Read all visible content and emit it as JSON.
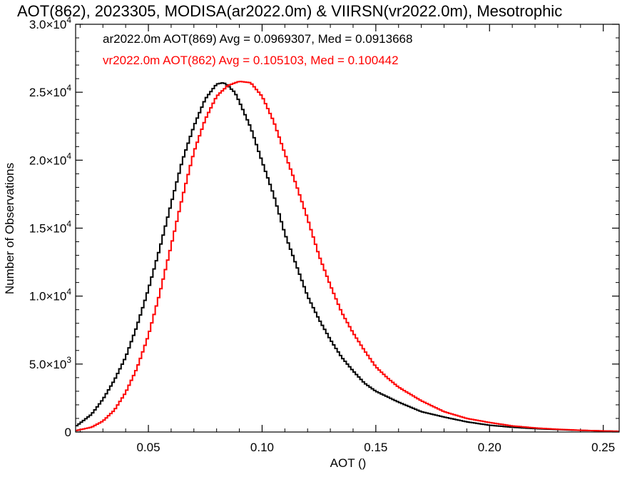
{
  "chart_data": {
    "type": "line",
    "title": "AOT(862), 2023305, MODISA(ar2022.0m) & VIIRSN(vr2022.0m), Mesotrophic",
    "xlabel": "AOT ()",
    "ylabel": "Number of Observations",
    "xlim": [
      0.018,
      0.257
    ],
    "ylim": [
      0,
      30000
    ],
    "x_ticks": [
      {
        "value": 0.05,
        "label": "0.05"
      },
      {
        "value": 0.1,
        "label": "0.10"
      },
      {
        "value": 0.15,
        "label": "0.15"
      },
      {
        "value": 0.2,
        "label": "0.20"
      },
      {
        "value": 0.25,
        "label": "0.25"
      }
    ],
    "y_ticks": [
      {
        "value": 0,
        "mant": "0",
        "exp": ""
      },
      {
        "value": 5000,
        "mant": "5.0×10",
        "exp": "3"
      },
      {
        "value": 10000,
        "mant": "1.0×10",
        "exp": "4"
      },
      {
        "value": 15000,
        "mant": "1.5×10",
        "exp": "4"
      },
      {
        "value": 20000,
        "mant": "2.0×10",
        "exp": "4"
      },
      {
        "value": 25000,
        "mant": "2.5×10",
        "exp": "4"
      },
      {
        "value": 30000,
        "mant": "3.0×10",
        "exp": "4"
      }
    ],
    "grid": false,
    "legend_position": "top-left",
    "series": [
      {
        "name": "ar2022.0m AOT(869) Avg = 0.0969307, Med = 0.0913668",
        "color": "#000000",
        "x": [
          0.018,
          0.025,
          0.03,
          0.035,
          0.04,
          0.045,
          0.05,
          0.055,
          0.06,
          0.065,
          0.07,
          0.075,
          0.08,
          0.083,
          0.085,
          0.086,
          0.088,
          0.09,
          0.095,
          0.1,
          0.105,
          0.11,
          0.115,
          0.12,
          0.125,
          0.13,
          0.135,
          0.14,
          0.145,
          0.15,
          0.16,
          0.17,
          0.18,
          0.19,
          0.2,
          0.21,
          0.22,
          0.23,
          0.24,
          0.25,
          0.257
        ],
        "y": [
          400,
          1300,
          2400,
          3800,
          5500,
          7800,
          10500,
          13500,
          16800,
          20000,
          22500,
          24500,
          25600,
          25700,
          25500,
          25300,
          25000,
          24300,
          22400,
          19900,
          17500,
          14600,
          12300,
          10000,
          8300,
          6800,
          5500,
          4500,
          3600,
          3000,
          2200,
          1500,
          1100,
          750,
          500,
          350,
          250,
          180,
          120,
          80,
          50
        ]
      },
      {
        "name": "vr2022.0m AOT(862) Avg = 0.105103, Med = 0.100442",
        "color": "#ff0000",
        "x": [
          0.018,
          0.025,
          0.03,
          0.035,
          0.04,
          0.045,
          0.05,
          0.055,
          0.06,
          0.065,
          0.07,
          0.075,
          0.08,
          0.085,
          0.09,
          0.095,
          0.1,
          0.105,
          0.11,
          0.115,
          0.12,
          0.125,
          0.13,
          0.135,
          0.14,
          0.145,
          0.15,
          0.155,
          0.16,
          0.17,
          0.18,
          0.19,
          0.2,
          0.21,
          0.22,
          0.23,
          0.24,
          0.25,
          0.257
        ],
        "y": [
          100,
          350,
          800,
          1600,
          2900,
          4700,
          7100,
          10200,
          13700,
          17300,
          20600,
          23000,
          24700,
          25500,
          25800,
          25700,
          24700,
          22900,
          20500,
          18200,
          15700,
          13000,
          10800,
          8800,
          7300,
          6000,
          4800,
          4000,
          3300,
          2300,
          1500,
          1000,
          700,
          450,
          300,
          200,
          130,
          80,
          50
        ]
      }
    ]
  }
}
